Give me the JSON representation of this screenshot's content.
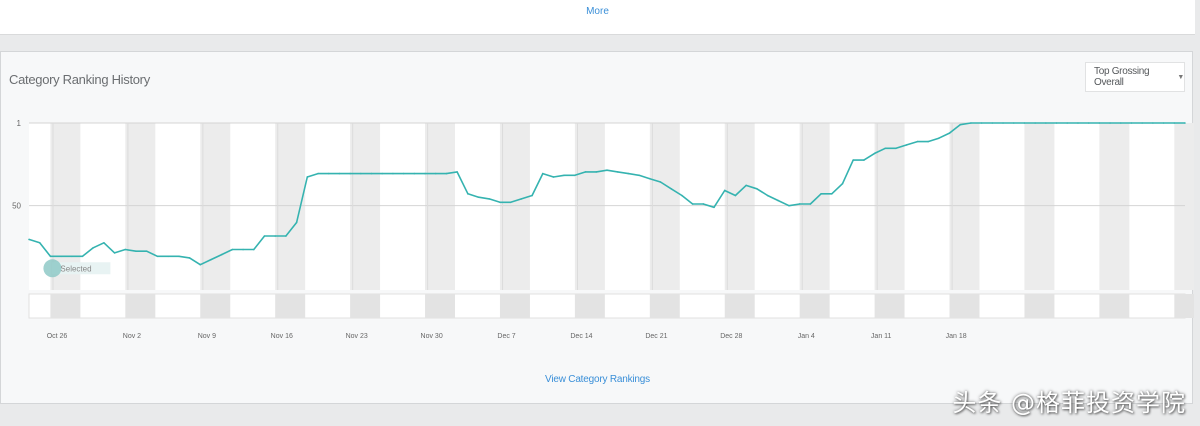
{
  "top_panel": {
    "link_label": "More"
  },
  "panel": {
    "title": "Category Ranking History",
    "dropdown_label": "Top Grossing Overall",
    "footer_link": "View Category Rankings"
  },
  "colors": {
    "line": "#35b3b0",
    "link": "#3a8fd8"
  },
  "watermark": "头条 @格菲投资学院",
  "chart_data": {
    "type": "line",
    "title": "Category Ranking History",
    "xlabel": "",
    "ylabel": "",
    "x_ticks": [
      "Oct 26",
      "Nov 2",
      "Nov 9",
      "Nov 16",
      "Nov 23",
      "Nov 30",
      "Dec 7",
      "Dec 14",
      "Dec 21",
      "Dec 28",
      "Jan 4",
      "Jan 11",
      "Jan 18"
    ],
    "y_ticks": [
      1,
      50
    ],
    "y_reversed": true,
    "ylim": [
      1,
      100
    ],
    "tooltip_label": "Selected",
    "grid": true,
    "series": [
      {
        "name": "",
        "x_days": [
          0,
          1,
          2,
          3,
          4,
          5,
          6,
          7,
          8,
          9,
          10,
          11,
          12,
          13,
          14,
          15,
          16,
          17,
          18,
          19,
          20,
          21,
          22,
          23,
          24,
          25,
          26,
          27,
          28,
          29,
          30,
          31,
          32,
          33,
          34,
          35,
          36,
          37,
          38,
          39,
          40,
          41,
          42,
          43,
          44,
          45,
          46,
          47,
          48,
          49,
          50,
          51,
          52,
          53,
          54,
          55,
          56,
          57,
          58,
          59,
          60,
          61,
          62,
          63,
          64,
          65,
          66,
          67,
          68,
          69,
          70,
          71,
          72,
          73,
          74,
          75,
          76,
          77,
          78,
          79,
          80,
          81,
          82,
          83,
          84,
          85,
          86,
          87,
          88,
          89,
          90,
          91,
          92,
          93,
          94,
          95,
          96,
          97,
          98,
          99,
          100,
          101,
          102,
          103,
          104,
          105,
          106,
          107,
          108
        ],
        "values": [
          70,
          72,
          80,
          80,
          80,
          80,
          75,
          72,
          78,
          76,
          77,
          77,
          80,
          80,
          80,
          81,
          85,
          82,
          79,
          76,
          76,
          76,
          68,
          68,
          68,
          60,
          33,
          31,
          31,
          31,
          31,
          31,
          31,
          31,
          31,
          31,
          31,
          31,
          31,
          31,
          30,
          43,
          45,
          46,
          48,
          48,
          46,
          44,
          31,
          33,
          32,
          32,
          30,
          30,
          29,
          30,
          31,
          32,
          34,
          36,
          40,
          44,
          49,
          49,
          51,
          41,
          44,
          38,
          40,
          44,
          47,
          50,
          49,
          49,
          43,
          43,
          37,
          23,
          23,
          19,
          16,
          16,
          14,
          12,
          12,
          10,
          7,
          2,
          1,
          1,
          1,
          1,
          1,
          1,
          1,
          1,
          1,
          1,
          1,
          1,
          1,
          1,
          1,
          1,
          1,
          1,
          1,
          1,
          1
        ]
      }
    ]
  }
}
